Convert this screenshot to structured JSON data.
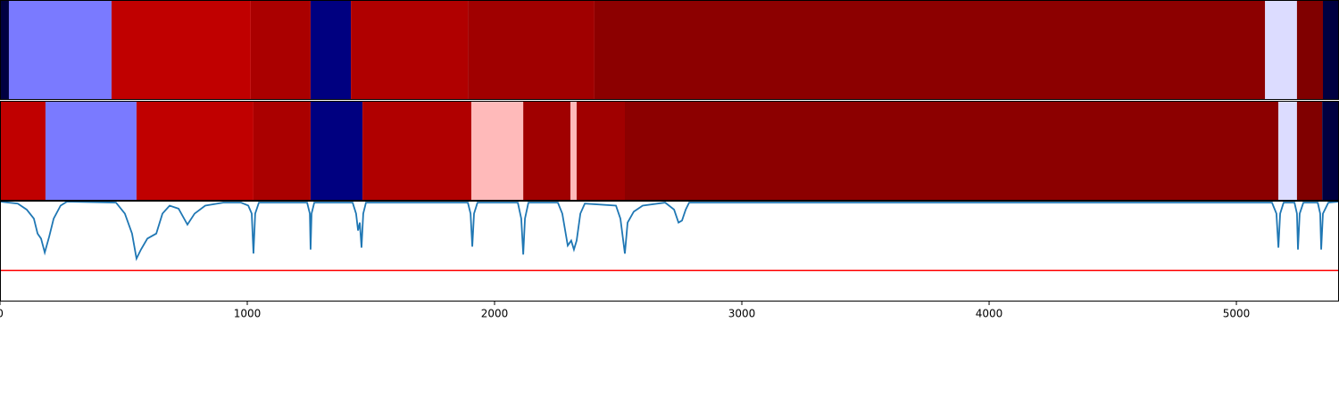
{
  "chart_data": {
    "type": "line",
    "strips": [
      {
        "segments": [
          {
            "start": 0,
            "end": 36,
            "color": "#000040"
          },
          {
            "start": 36,
            "end": 451,
            "color": "#7a7aff"
          },
          {
            "start": 451,
            "end": 1014,
            "color": "#c00000"
          },
          {
            "start": 1014,
            "end": 1256,
            "color": "#aa0000"
          },
          {
            "start": 1256,
            "end": 1419,
            "color": "#000080"
          },
          {
            "start": 1419,
            "end": 1892,
            "color": "#b00000"
          },
          {
            "start": 1892,
            "end": 2404,
            "color": "#a00000"
          },
          {
            "start": 2404,
            "end": 5116,
            "color": "#8c0000"
          },
          {
            "start": 5116,
            "end": 5245,
            "color": "#dcdcff"
          },
          {
            "start": 5245,
            "end": 5350,
            "color": "#800000"
          },
          {
            "start": 5350,
            "end": 5415,
            "color": "#000040"
          }
        ]
      },
      {
        "segments": [
          {
            "start": 0,
            "end": 184,
            "color": "#c00000"
          },
          {
            "start": 184,
            "end": 552,
            "color": "#7a7aff"
          },
          {
            "start": 552,
            "end": 1025,
            "color": "#c00000"
          },
          {
            "start": 1025,
            "end": 1256,
            "color": "#aa0000"
          },
          {
            "start": 1256,
            "end": 1466,
            "color": "#000080"
          },
          {
            "start": 1466,
            "end": 1906,
            "color": "#b00000"
          },
          {
            "start": 1906,
            "end": 2116,
            "color": "#ffbaba"
          },
          {
            "start": 2116,
            "end": 2307,
            "color": "#a00000"
          },
          {
            "start": 2307,
            "end": 2332,
            "color": "#ffbaba"
          },
          {
            "start": 2332,
            "end": 2527,
            "color": "#a00000"
          },
          {
            "start": 2527,
            "end": 5170,
            "color": "#8c0000"
          },
          {
            "start": 5170,
            "end": 5245,
            "color": "#dcdcff"
          },
          {
            "start": 5245,
            "end": 5347,
            "color": "#800000"
          },
          {
            "start": 5347,
            "end": 5415,
            "color": "#000040"
          }
        ]
      }
    ],
    "x": [
      0,
      72,
      108,
      137,
      152,
      166,
      181,
      199,
      217,
      245,
      271,
      469,
      505,
      534,
      552,
      570,
      596,
      632,
      657,
      686,
      722,
      758,
      787,
      830,
      903,
      975,
      1004,
      1018,
      1025,
      1032,
      1047,
      1242,
      1253,
      1256,
      1260,
      1271,
      1426,
      1440,
      1448,
      1455,
      1462,
      1469,
      1480,
      1892,
      1903,
      1910,
      1917,
      1931,
      2094,
      2108,
      2116,
      2123,
      2137,
      2256,
      2274,
      2296,
      2310,
      2321,
      2332,
      2347,
      2365,
      2491,
      2509,
      2527,
      2538,
      2563,
      2599,
      2690,
      2726,
      2744,
      2758,
      2773,
      2787,
      5144,
      5162,
      5170,
      5177,
      5191,
      5235,
      5245,
      5249,
      5256,
      5271,
      5329,
      5339,
      5343,
      5350,
      5372,
      5415
    ],
    "series": [
      {
        "color": "#1f77b4",
        "values": [
          1.0,
          0.98,
          0.92,
          0.83,
          0.68,
          0.63,
          0.49,
          0.65,
          0.83,
          0.96,
          1.0,
          0.99,
          0.88,
          0.68,
          0.43,
          0.52,
          0.63,
          0.68,
          0.88,
          0.96,
          0.93,
          0.77,
          0.88,
          0.96,
          0.99,
          0.99,
          0.96,
          0.88,
          0.48,
          0.88,
          0.99,
          0.99,
          0.88,
          0.52,
          0.88,
          0.99,
          0.99,
          0.88,
          0.71,
          0.79,
          0.54,
          0.88,
          0.99,
          0.99,
          0.88,
          0.55,
          0.88,
          0.99,
          0.99,
          0.83,
          0.47,
          0.83,
          0.99,
          0.99,
          0.88,
          0.56,
          0.61,
          0.52,
          0.61,
          0.88,
          0.98,
          0.96,
          0.83,
          0.48,
          0.79,
          0.9,
          0.96,
          0.99,
          0.92,
          0.79,
          0.81,
          0.92,
          0.99,
          0.99,
          0.88,
          0.54,
          0.88,
          0.99,
          0.99,
          0.88,
          0.52,
          0.88,
          0.99,
          0.99,
          0.88,
          0.52,
          0.88,
          0.99,
          1.0
        ]
      }
    ],
    "threshold": {
      "value": 0.31,
      "color": "#ff0000"
    },
    "xlim": [
      0,
      5415
    ],
    "xticks": [
      0,
      1000,
      2000,
      3000,
      4000,
      5000
    ],
    "ylim": [
      0,
      1
    ]
  }
}
